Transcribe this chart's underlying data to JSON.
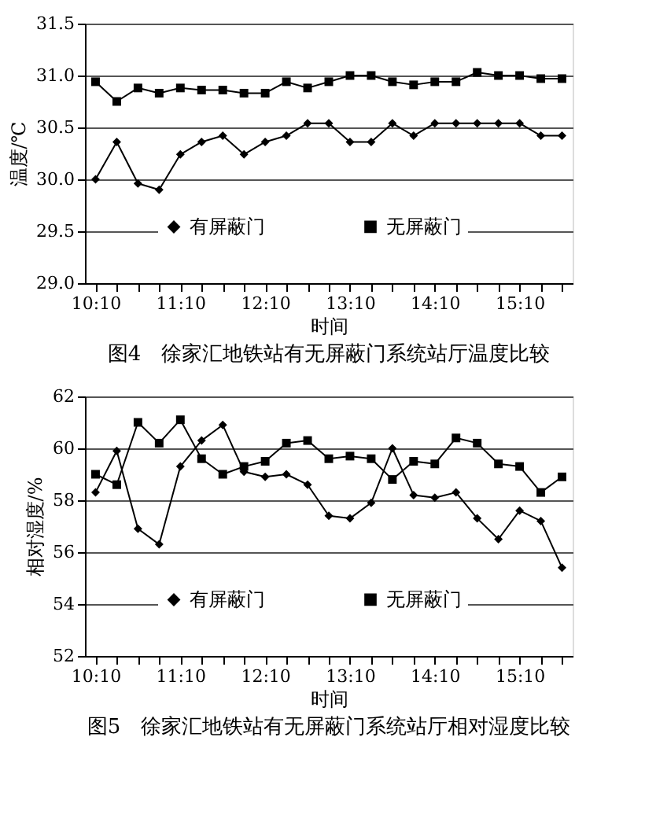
{
  "chart_data": [
    {
      "type": "line",
      "title": "图4　徐家汇地铁站有无屏蔽门系统站厅温度比较",
      "xlabel": "时间",
      "ylabel": "温度/℃",
      "categories": [
        "10:10",
        null,
        null,
        null,
        "11:10",
        null,
        null,
        null,
        "12:10",
        null,
        null,
        null,
        "13:10",
        null,
        null,
        null,
        "14:10",
        null,
        null,
        null,
        "15:10",
        null,
        null
      ],
      "series": [
        {
          "name": "有屏蔽门",
          "color": "#000000",
          "marker": "diamond",
          "values": [
            30.0,
            30.36,
            29.96,
            29.9,
            30.24,
            30.36,
            30.42,
            30.24,
            30.36,
            30.42,
            30.54,
            30.54,
            30.36,
            30.36,
            30.54,
            30.42,
            30.54,
            30.54,
            30.54,
            30.54,
            30.54,
            30.42,
            30.42
          ]
        },
        {
          "name": "无屏蔽门",
          "color": "#000000",
          "marker": "square",
          "values": [
            30.94,
            30.75,
            30.88,
            30.83,
            30.88,
            30.86,
            30.86,
            30.83,
            30.83,
            30.94,
            30.88,
            30.94,
            31.0,
            31.0,
            30.94,
            30.91,
            30.94,
            30.94,
            31.03,
            31.0,
            31.0,
            30.97,
            30.97
          ]
        }
      ],
      "ylim": [
        29.0,
        31.5
      ],
      "yticks": [
        {
          "value": 29.0,
          "label": "29.0"
        },
        29.5,
        {
          "value": 30.0,
          "label": "30.0"
        },
        30.5,
        {
          "value": 31.0,
          "label": "31.0"
        },
        31.5
      ],
      "grid": "y",
      "legend": "bottom"
    },
    {
      "type": "line",
      "title": "图5　徐家汇地铁站有无屏蔽门系统站厅相对湿度比较",
      "xlabel": "时间",
      "ylabel": "相对湿度/%",
      "categories": [
        "10:10",
        null,
        null,
        null,
        "11:10",
        null,
        null,
        null,
        "12:10",
        null,
        null,
        null,
        "13:10",
        null,
        null,
        null,
        "14:10",
        null,
        null,
        null,
        "15:10",
        null,
        null
      ],
      "series": [
        {
          "name": "有屏蔽门",
          "color": "#000000",
          "marker": "diamond",
          "values": [
            58.3,
            59.9,
            56.9,
            56.3,
            59.3,
            60.3,
            60.9,
            59.1,
            58.9,
            59.0,
            58.6,
            57.4,
            57.3,
            57.9,
            60.0,
            58.2,
            58.1,
            58.3,
            57.3,
            56.5,
            57.6,
            57.2,
            55.4
          ]
        },
        {
          "name": "无屏蔽门",
          "color": "#000000",
          "marker": "square",
          "values": [
            59.0,
            58.6,
            61.0,
            60.2,
            61.1,
            59.6,
            59.0,
            59.3,
            59.5,
            60.2,
            60.3,
            59.6,
            59.7,
            59.6,
            58.8,
            59.5,
            59.4,
            60.4,
            60.2,
            59.4,
            59.3,
            58.3,
            58.9
          ]
        }
      ],
      "ylim": [
        52,
        62
      ],
      "yticks": [
        52,
        54,
        56,
        58,
        60,
        62
      ],
      "grid": "y",
      "legend": "bottom"
    }
  ]
}
